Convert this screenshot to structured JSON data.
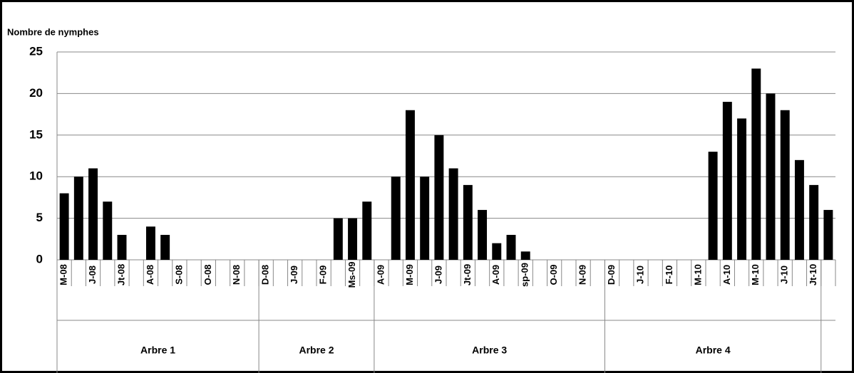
{
  "chart_data": {
    "type": "bar",
    "y_label": "Nombre de nymphes",
    "categories": [
      "M-08",
      null,
      "J-08",
      null,
      "Jt-08",
      null,
      "A-08",
      null,
      "S-08",
      null,
      "O-08",
      null,
      "N-08",
      null,
      "D-08",
      null,
      "J-09",
      null,
      "F-09",
      null,
      "Ms-09",
      null,
      "A-09",
      null,
      "M-09",
      null,
      "J-09",
      null,
      "Jt-09",
      null,
      "A-09",
      null,
      "sp-09",
      null,
      "O-09",
      null,
      "N-09",
      null,
      "D-09",
      null,
      "J-10",
      null,
      "F-10",
      null,
      "M-10",
      null,
      "A-10",
      null,
      "M-10",
      null,
      "J-10",
      null,
      "Jt-10",
      null
    ],
    "values": [
      8,
      10,
      11,
      7,
      3,
      0,
      4,
      3,
      0,
      0,
      0,
      0,
      0,
      0,
      0,
      0,
      0,
      0,
      0,
      5,
      5,
      7,
      0,
      10,
      18,
      10,
      15,
      11,
      9,
      6,
      2,
      3,
      1,
      0,
      0,
      0,
      0,
      0,
      0,
      0,
      0,
      0,
      0,
      0,
      0,
      13,
      19,
      17,
      23,
      20,
      18,
      12,
      9,
      6
    ],
    "groups": [
      "Arbre 1",
      "Arbre 2",
      "Arbre 3",
      "Arbre 4"
    ],
    "color": "#000000",
    "ylim": [
      0,
      25
    ],
    "yticks": [
      0,
      5,
      10,
      15,
      20,
      25
    ],
    "grid": true
  }
}
